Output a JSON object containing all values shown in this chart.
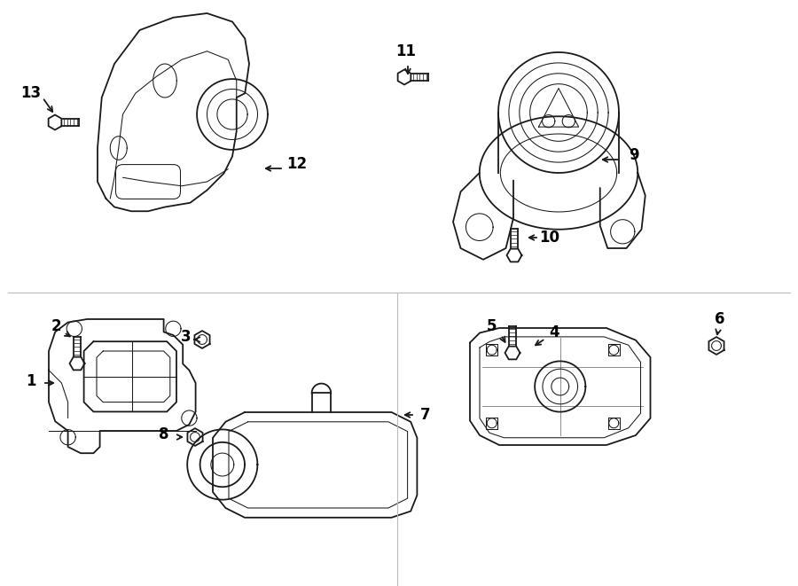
{
  "background_color": "#ffffff",
  "line_color": "#1a1a1a",
  "label_color": "#000000",
  "fig_width": 9.0,
  "fig_height": 6.61,
  "lw": 1.3,
  "lw_thin": 0.75,
  "label_fontsize": 12
}
